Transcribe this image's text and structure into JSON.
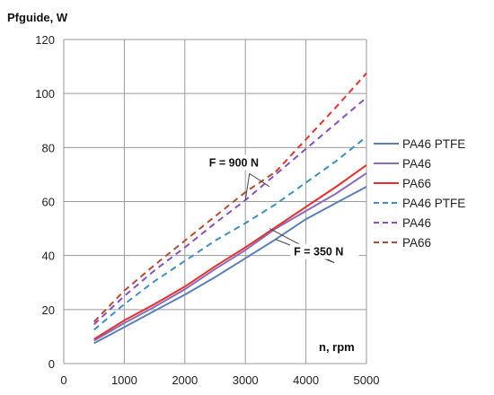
{
  "chart_data": {
    "type": "line",
    "title": "",
    "ylabel": "Pfguide,  W",
    "xlabel": "n, rpm",
    "xlim": [
      0,
      5000
    ],
    "ylim": [
      0,
      120
    ],
    "xticks": [
      0,
      1000,
      2000,
      3000,
      4000,
      5000
    ],
    "yticks": [
      0,
      20,
      40,
      60,
      80,
      100,
      120
    ],
    "grid": true,
    "legend_position": "right",
    "series": [
      {
        "name": "PA46 PTFE",
        "color": "#5b7fbd",
        "dash": "solid",
        "x": [
          500,
          1000,
          1500,
          2000,
          2500,
          3000,
          3500,
          4000,
          4500,
          5000
        ],
        "y": [
          7.5,
          13.5,
          19.5,
          25.5,
          32,
          39,
          46,
          53.5,
          59.5,
          65.5
        ]
      },
      {
        "name": "PA46",
        "color": "#8a6bbd",
        "dash": "solid",
        "x": [
          500,
          1000,
          1500,
          2000,
          2500,
          3000,
          3500,
          4000,
          4500,
          5000
        ],
        "y": [
          8.5,
          15,
          21,
          27.5,
          35,
          42,
          50,
          56.5,
          63,
          70.5
        ]
      },
      {
        "name": "PA66",
        "color": "#e8302a",
        "dash": "solid",
        "x": [
          500,
          1000,
          1500,
          2000,
          2500,
          3000,
          3500,
          4000,
          4500,
          5000
        ],
        "y": [
          9,
          16,
          22,
          28.5,
          36,
          43,
          50.5,
          58,
          65.5,
          73.5
        ]
      },
      {
        "name": "PA46 PTFE",
        "color": "#3a8fc4",
        "dash": "dashed",
        "x": [
          500,
          1000,
          1500,
          2000,
          2500,
          3000,
          3500,
          4000,
          4500,
          5000
        ],
        "y": [
          12.5,
          22,
          30.5,
          38,
          45.5,
          52,
          59,
          67,
          75,
          84
        ]
      },
      {
        "name": "PA46",
        "color": "#8a4fc2",
        "dash": "dashed",
        "x": [
          500,
          1000,
          1500,
          2000,
          2500,
          3000,
          3500,
          4000,
          4500,
          5000
        ],
        "y": [
          14.5,
          25,
          34.5,
          43,
          52,
          60.5,
          70,
          79.5,
          89,
          98.5
        ]
      },
      {
        "name": "PA66",
        "color": "#b84a2f",
        "dash": "dashed",
        "x": [
          500,
          1000,
          1500,
          2000,
          2500,
          3000,
          3500
        ],
        "y": [
          15.5,
          27,
          36.5,
          45.5,
          54.5,
          63.5,
          71
        ]
      },
      {
        "name": "",
        "color": "#e8302a",
        "dash": "dashed",
        "x": [
          3500,
          4000,
          4500,
          5000
        ],
        "y": [
          71,
          83,
          95,
          107.5
        ]
      }
    ],
    "annotations": [
      {
        "text": "F = 900 N",
        "at": [
          2400,
          73
        ],
        "arrows_to": [
          [
            3000,
            60.5
          ],
          [
            3400,
            65.5
          ]
        ]
      },
      {
        "text": "F = 350 N",
        "at": [
          3800,
          40
        ],
        "arrows_to": [
          [
            3400,
            50
          ],
          [
            3500,
            46
          ]
        ]
      }
    ]
  }
}
